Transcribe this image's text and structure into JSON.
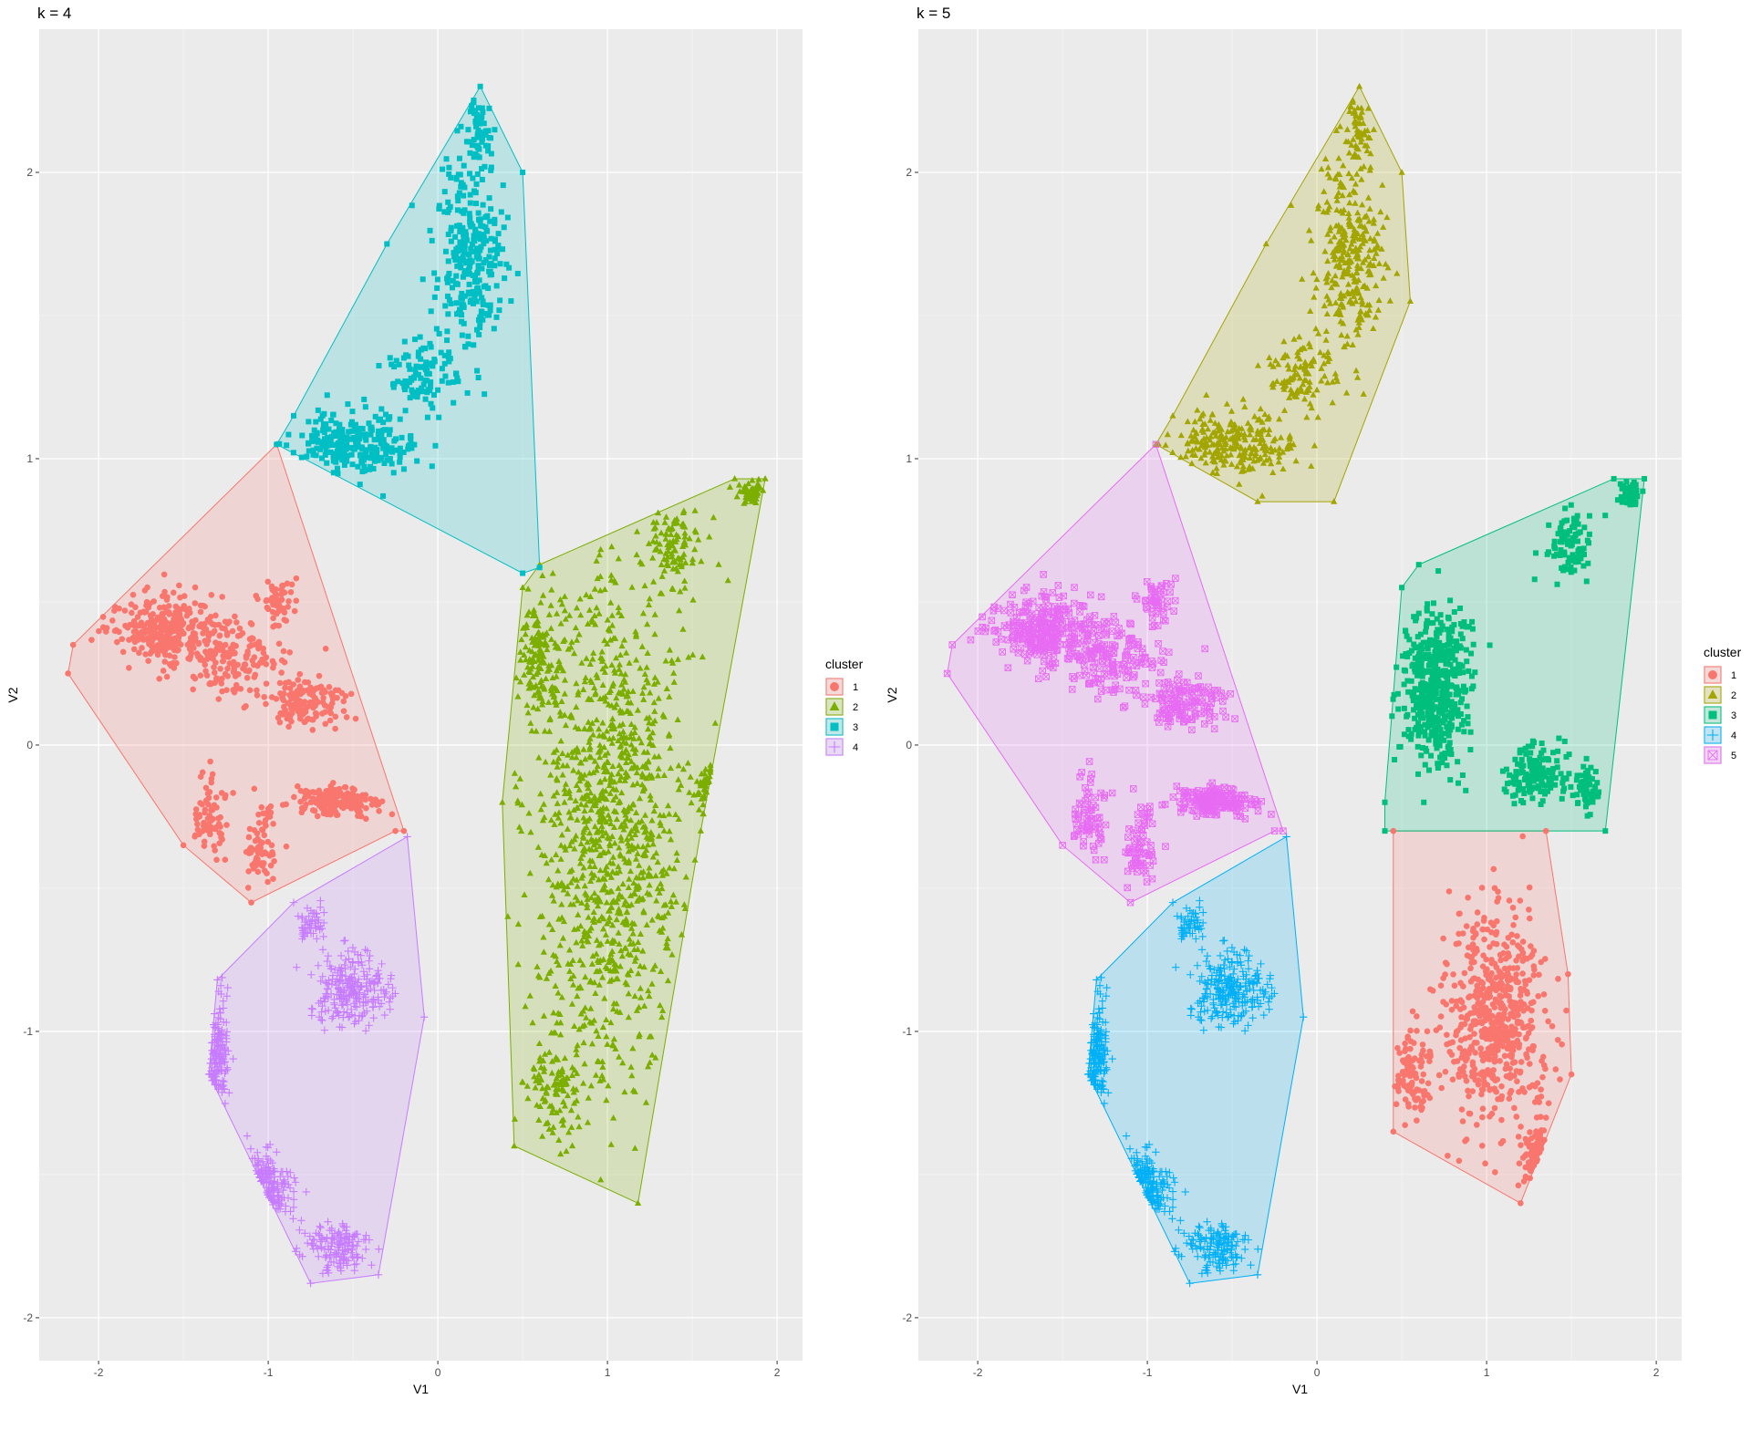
{
  "chart_data": [
    {
      "type": "scatter",
      "title": "k = 4",
      "xlabel": "V1",
      "ylabel": "V2",
      "xlim": [
        -2.35,
        2.15
      ],
      "ylim": [
        -2.15,
        2.5
      ],
      "x_ticks": [
        "-2",
        "-1",
        "0",
        "1",
        "2"
      ],
      "y_ticks": [
        "-2",
        "-1",
        "0",
        "1",
        "2"
      ],
      "grid": true,
      "legend_title": "cluster",
      "legend_position": "right",
      "legend": [
        {
          "label": "1",
          "color": "#F8766D",
          "shape": "circle"
        },
        {
          "label": "2",
          "color": "#7CAE00",
          "shape": "triangle"
        },
        {
          "label": "3",
          "color": "#00BFC4",
          "shape": "square"
        },
        {
          "label": "4",
          "color": "#C77CFF",
          "shape": "plus"
        }
      ],
      "clusters": [
        {
          "name": "1",
          "color": "#F8766D",
          "shape": "circle",
          "hull": [
            [
              -0.95,
              1.05
            ],
            [
              -2.15,
              0.35
            ],
            [
              -2.18,
              0.25
            ],
            [
              -1.5,
              -0.35
            ],
            [
              -1.1,
              -0.55
            ],
            [
              -0.25,
              -0.3
            ],
            [
              -0.2,
              -0.3
            ]
          ],
          "blobs": [
            [
              -1.6,
              0.4,
              0.35,
              0.12,
              300
            ],
            [
              -1.2,
              0.3,
              0.3,
              0.12,
              150
            ],
            [
              -0.8,
              0.15,
              0.25,
              0.08,
              140
            ],
            [
              -0.6,
              -0.2,
              0.25,
              0.05,
              180
            ],
            [
              -1.35,
              -0.25,
              0.1,
              0.15,
              70
            ],
            [
              -1.05,
              -0.35,
              0.1,
              0.15,
              70
            ],
            [
              -0.95,
              0.5,
              0.1,
              0.08,
              50
            ]
          ]
        },
        {
          "name": "2",
          "color": "#7CAE00",
          "shape": "triangle",
          "hull": [
            [
              0.6,
              0.63
            ],
            [
              1.75,
              0.93
            ],
            [
              1.93,
              0.93
            ],
            [
              1.55,
              -0.3
            ],
            [
              1.18,
              -1.6
            ],
            [
              0.45,
              -1.4
            ],
            [
              0.38,
              -0.2
            ],
            [
              0.5,
              0.55
            ]
          ],
          "blobs": [
            [
              1.0,
              -0.3,
              0.45,
              0.9,
              1100
            ],
            [
              0.6,
              0.3,
              0.15,
              0.2,
              150
            ],
            [
              1.4,
              0.7,
              0.15,
              0.12,
              100
            ],
            [
              1.85,
              0.88,
              0.08,
              0.04,
              60
            ],
            [
              1.6,
              -0.15,
              0.08,
              0.08,
              40
            ],
            [
              0.7,
              -1.2,
              0.2,
              0.15,
              100
            ]
          ]
        },
        {
          "name": "3",
          "color": "#00BFC4",
          "shape": "square",
          "hull": [
            [
              0.25,
              2.3
            ],
            [
              0.5,
              2.0
            ],
            [
              0.6,
              0.62
            ],
            [
              0.5,
              0.6
            ],
            [
              -0.95,
              1.05
            ],
            [
              -0.85,
              1.15
            ],
            [
              -0.3,
              1.75
            ]
          ],
          "blobs": [
            [
              0.2,
              1.7,
              0.2,
              0.35,
              300
            ],
            [
              -0.5,
              1.05,
              0.35,
              0.12,
              250
            ],
            [
              0.25,
              2.15,
              0.07,
              0.15,
              60
            ],
            [
              -0.1,
              1.3,
              0.2,
              0.12,
              100
            ]
          ]
        },
        {
          "name": "4",
          "color": "#C77CFF",
          "shape": "plus",
          "hull": [
            [
              -0.18,
              -0.32
            ],
            [
              -0.08,
              -0.95
            ],
            [
              -0.35,
              -1.85
            ],
            [
              -0.75,
              -1.88
            ],
            [
              -1.35,
              -1.15
            ],
            [
              -1.3,
              -0.82
            ],
            [
              -0.85,
              -0.55
            ]
          ],
          "blobs": [
            [
              -0.5,
              -0.85,
              0.22,
              0.12,
              250
            ],
            [
              -1.3,
              -1.1,
              0.07,
              0.28,
              150
            ],
            [
              -1.05,
              -1.55,
              0.18,
              0.12,
              150
            ],
            [
              -0.6,
              -1.75,
              0.2,
              0.08,
              150
            ],
            [
              -0.75,
              -0.62,
              0.08,
              0.06,
              50
            ]
          ]
        }
      ]
    },
    {
      "type": "scatter",
      "title": "k = 5",
      "xlabel": "V1",
      "ylabel": "V2",
      "xlim": [
        -2.35,
        2.15
      ],
      "ylim": [
        -2.15,
        2.5
      ],
      "x_ticks": [
        "-2",
        "-1",
        "0",
        "1",
        "2"
      ],
      "y_ticks": [
        "-2",
        "-1",
        "0",
        "1",
        "2"
      ],
      "grid": true,
      "legend_title": "cluster",
      "legend_position": "right",
      "legend": [
        {
          "label": "1",
          "color": "#F8766D",
          "shape": "circle"
        },
        {
          "label": "2",
          "color": "#A3A500",
          "shape": "triangle"
        },
        {
          "label": "3",
          "color": "#00BF7D",
          "shape": "square"
        },
        {
          "label": "4",
          "color": "#00B0F6",
          "shape": "plus"
        },
        {
          "label": "5",
          "color": "#E76BF3",
          "shape": "boxed-cross"
        }
      ],
      "clusters": [
        {
          "name": "1",
          "color": "#F8766D",
          "shape": "circle",
          "hull": [
            [
              0.45,
              -0.3
            ],
            [
              1.35,
              -0.3
            ],
            [
              1.48,
              -0.8
            ],
            [
              1.5,
              -1.15
            ],
            [
              1.2,
              -1.6
            ],
            [
              0.45,
              -1.35
            ]
          ],
          "blobs": [
            [
              1.05,
              -0.95,
              0.3,
              0.4,
              600
            ],
            [
              1.3,
              -1.45,
              0.08,
              0.12,
              80
            ],
            [
              0.55,
              -1.15,
              0.1,
              0.15,
              100
            ]
          ]
        },
        {
          "name": "2",
          "color": "#A3A500",
          "shape": "triangle",
          "hull": [
            [
              0.25,
              2.3
            ],
            [
              0.5,
              2.0
            ],
            [
              0.55,
              1.55
            ],
            [
              0.1,
              0.85
            ],
            [
              -0.35,
              0.85
            ],
            [
              -0.95,
              1.05
            ],
            [
              -0.85,
              1.15
            ],
            [
              -0.3,
              1.75
            ]
          ],
          "blobs": [
            [
              0.2,
              1.7,
              0.2,
              0.35,
              300
            ],
            [
              -0.5,
              1.05,
              0.35,
              0.12,
              250
            ],
            [
              0.25,
              2.15,
              0.07,
              0.15,
              60
            ],
            [
              -0.1,
              1.3,
              0.2,
              0.12,
              100
            ]
          ]
        },
        {
          "name": "3",
          "color": "#00BF7D",
          "shape": "square",
          "hull": [
            [
              0.6,
              0.63
            ],
            [
              1.75,
              0.93
            ],
            [
              1.93,
              0.93
            ],
            [
              1.7,
              -0.3
            ],
            [
              0.4,
              -0.3
            ],
            [
              0.4,
              -0.2
            ],
            [
              0.5,
              0.55
            ]
          ],
          "blobs": [
            [
              0.7,
              0.2,
              0.2,
              0.25,
              500
            ],
            [
              1.3,
              -0.1,
              0.2,
              0.1,
              150
            ],
            [
              1.5,
              0.7,
              0.12,
              0.1,
              100
            ],
            [
              1.85,
              0.88,
              0.06,
              0.04,
              60
            ],
            [
              1.6,
              -0.15,
              0.07,
              0.08,
              50
            ]
          ]
        },
        {
          "name": "4",
          "color": "#00B0F6",
          "shape": "plus",
          "hull": [
            [
              -0.18,
              -0.32
            ],
            [
              -0.08,
              -0.95
            ],
            [
              -0.35,
              -1.85
            ],
            [
              -0.75,
              -1.88
            ],
            [
              -1.35,
              -1.15
            ],
            [
              -1.3,
              -0.82
            ],
            [
              -0.85,
              -0.55
            ]
          ],
          "blobs": [
            [
              -0.5,
              -0.85,
              0.22,
              0.12,
              250
            ],
            [
              -1.3,
              -1.1,
              0.07,
              0.28,
              150
            ],
            [
              -1.05,
              -1.55,
              0.18,
              0.12,
              150
            ],
            [
              -0.6,
              -1.75,
              0.2,
              0.08,
              150
            ],
            [
              -0.75,
              -0.62,
              0.08,
              0.06,
              50
            ]
          ]
        },
        {
          "name": "5",
          "color": "#E76BF3",
          "shape": "boxed-cross",
          "hull": [
            [
              -0.95,
              1.05
            ],
            [
              -2.15,
              0.35
            ],
            [
              -2.18,
              0.25
            ],
            [
              -1.5,
              -0.35
            ],
            [
              -1.1,
              -0.55
            ],
            [
              -0.25,
              -0.3
            ],
            [
              -0.2,
              -0.3
            ]
          ],
          "blobs": [
            [
              -1.6,
              0.4,
              0.35,
              0.12,
              300
            ],
            [
              -1.2,
              0.3,
              0.3,
              0.12,
              150
            ],
            [
              -0.8,
              0.15,
              0.25,
              0.08,
              140
            ],
            [
              -0.6,
              -0.2,
              0.25,
              0.05,
              180
            ],
            [
              -1.35,
              -0.25,
              0.1,
              0.15,
              70
            ],
            [
              -1.05,
              -0.35,
              0.1,
              0.15,
              70
            ],
            [
              -0.95,
              0.5,
              0.1,
              0.08,
              50
            ]
          ]
        }
      ]
    }
  ]
}
